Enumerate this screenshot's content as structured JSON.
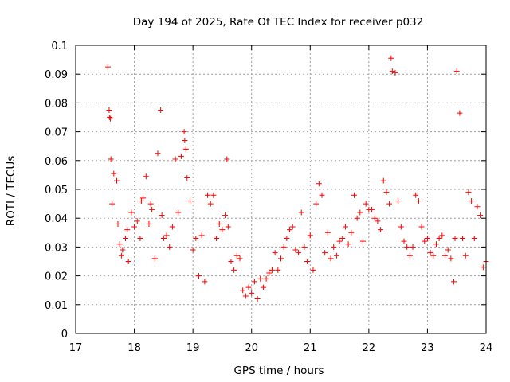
{
  "chart_data": {
    "type": "scatter",
    "title": "Day 194 of 2025, Rate Of TEC Index for receiver p032",
    "xlabel": "GPS time / hours",
    "ylabel": "ROTI / TECUs",
    "xlim": [
      17,
      24
    ],
    "ylim": [
      0,
      0.1
    ],
    "xticks": [
      17,
      18,
      19,
      20,
      21,
      22,
      23,
      24
    ],
    "xtick_labels": [
      "17",
      "18",
      "19",
      "20",
      "21",
      "22",
      "23",
      "24"
    ],
    "yticks": [
      0,
      0.01,
      0.02,
      0.03,
      0.04,
      0.05,
      0.06,
      0.07,
      0.08,
      0.09,
      0.1
    ],
    "ytick_labels": [
      "0",
      "0.01",
      "0.02",
      "0.03",
      "0.04",
      "0.05",
      "0.06",
      "0.07",
      "0.08",
      "0.09",
      "0.1"
    ],
    "grid": true,
    "marker": "+",
    "color": "#ff0000",
    "series": [
      {
        "name": "ROTI",
        "x": [
          17.55,
          17.57,
          17.58,
          17.59,
          17.6,
          17.62,
          17.65,
          17.7,
          17.72,
          17.75,
          17.78,
          17.8,
          17.85,
          17.88,
          17.9,
          17.95,
          18.0,
          18.05,
          18.1,
          18.12,
          18.15,
          18.2,
          18.25,
          18.28,
          18.3,
          18.35,
          18.4,
          18.45,
          18.47,
          18.5,
          18.55,
          18.6,
          18.65,
          18.7,
          18.75,
          18.8,
          18.85,
          18.86,
          18.88,
          18.9,
          18.95,
          19.0,
          19.05,
          19.1,
          19.15,
          19.2,
          19.25,
          19.3,
          19.35,
          19.4,
          19.45,
          19.5,
          19.55,
          19.58,
          19.6,
          19.65,
          19.7,
          19.75,
          19.8,
          19.85,
          19.9,
          19.95,
          20.0,
          20.05,
          20.1,
          20.15,
          20.2,
          20.25,
          20.3,
          20.35,
          20.4,
          20.45,
          20.5,
          20.55,
          20.6,
          20.65,
          20.7,
          20.75,
          20.8,
          20.85,
          20.9,
          20.95,
          21.0,
          21.05,
          21.1,
          21.15,
          21.2,
          21.25,
          21.3,
          21.35,
          21.4,
          21.45,
          21.5,
          21.55,
          21.6,
          21.65,
          21.7,
          21.75,
          21.8,
          21.85,
          21.9,
          21.95,
          22.0,
          22.05,
          22.1,
          22.15,
          22.2,
          22.25,
          22.3,
          22.35,
          22.38,
          22.4,
          22.45,
          22.5,
          22.55,
          22.6,
          22.65,
          22.7,
          22.75,
          22.8,
          22.85,
          22.9,
          22.95,
          23.0,
          23.05,
          23.1,
          23.15,
          23.2,
          23.25,
          23.3,
          23.35,
          23.4,
          23.45,
          23.47,
          23.5,
          23.55,
          23.6,
          23.65,
          23.7,
          23.75,
          23.8,
          23.85,
          23.9,
          23.95,
          24.0
        ],
        "y": [
          0.0925,
          0.0775,
          0.075,
          0.0745,
          0.0605,
          0.045,
          0.0555,
          0.053,
          0.038,
          0.031,
          0.027,
          0.029,
          0.033,
          0.036,
          0.025,
          0.042,
          0.037,
          0.039,
          0.033,
          0.046,
          0.047,
          0.0545,
          0.038,
          0.045,
          0.043,
          0.026,
          0.0625,
          0.0775,
          0.041,
          0.033,
          0.034,
          0.03,
          0.037,
          0.0605,
          0.042,
          0.0615,
          0.07,
          0.067,
          0.064,
          0.054,
          0.046,
          0.029,
          0.033,
          0.02,
          0.034,
          0.018,
          0.048,
          0.045,
          0.048,
          0.033,
          0.038,
          0.036,
          0.041,
          0.0605,
          0.037,
          0.025,
          0.022,
          0.027,
          0.026,
          0.015,
          0.013,
          0.016,
          0.014,
          0.018,
          0.012,
          0.019,
          0.016,
          0.019,
          0.021,
          0.022,
          0.028,
          0.022,
          0.026,
          0.03,
          0.033,
          0.036,
          0.037,
          0.029,
          0.028,
          0.042,
          0.03,
          0.025,
          0.034,
          0.022,
          0.045,
          0.052,
          0.048,
          0.028,
          0.035,
          0.026,
          0.03,
          0.027,
          0.032,
          0.033,
          0.037,
          0.031,
          0.035,
          0.048,
          0.04,
          0.042,
          0.032,
          0.045,
          0.043,
          0.043,
          0.04,
          0.039,
          0.036,
          0.053,
          0.049,
          0.045,
          0.0955,
          0.091,
          0.0905,
          0.046,
          0.037,
          0.032,
          0.03,
          0.027,
          0.03,
          0.048,
          0.046,
          0.037,
          0.032,
          0.033,
          0.028,
          0.027,
          0.031,
          0.033,
          0.034,
          0.027,
          0.029,
          0.026,
          0.018,
          0.033,
          0.091,
          0.0765,
          0.033,
          0.027,
          0.049,
          0.046,
          0.033,
          0.044,
          0.041,
          0.023,
          0.025
        ]
      }
    ]
  }
}
